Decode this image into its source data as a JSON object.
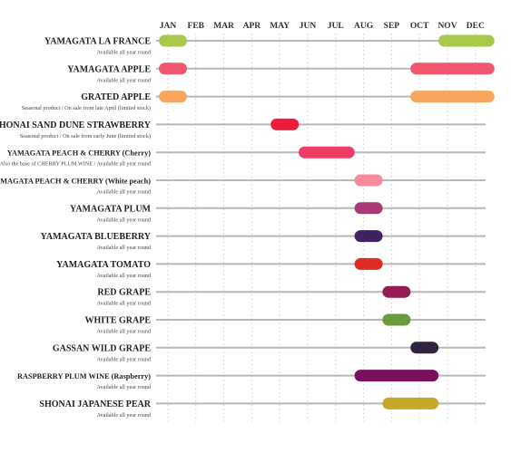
{
  "chart_data": {
    "type": "gantt",
    "title": "",
    "months": [
      "JAN",
      "FEB",
      "MAR",
      "APR",
      "MAY",
      "JUN",
      "JUL",
      "AUG",
      "SEP",
      "OCT",
      "NOV",
      "DEC"
    ],
    "grid": "dotted vertical at month boundaries",
    "products": [
      {
        "name": "YAMAGATA LA FRANCE",
        "note": "Available all year round",
        "color": "#a8c84a",
        "seasons": [
          {
            "start": "JAN",
            "end": "JAN"
          },
          {
            "start": "NOV",
            "end": "DEC"
          }
        ]
      },
      {
        "name": "YAMAGATA APPLE",
        "note": "Available all year round",
        "color": "#f2566f",
        "seasons": [
          {
            "start": "JAN",
            "end": "JAN"
          },
          {
            "start": "OCT",
            "end": "DEC"
          }
        ]
      },
      {
        "name": "GRATED APPLE",
        "note": "Seasonal product / On sale from late April (limited stock)",
        "color": "#f8a55e",
        "seasons": [
          {
            "start": "JAN",
            "end": "JAN"
          },
          {
            "start": "OCT",
            "end": "DEC"
          }
        ]
      },
      {
        "name": "SHONAI SAND DUNE STRAWBERRY",
        "note": "Seasonal product / On sale from early June (limited stock)",
        "color": "#ee1c3c",
        "seasons": [
          {
            "start": "MAY",
            "end": "MAY"
          }
        ]
      },
      {
        "name": "YAMAGATA PEACH & CHERRY (Cherry)",
        "note": "Also the base of CHERRY PLUM WINE / Available all year round",
        "color": "#ee3c66",
        "seasons": [
          {
            "start": "JUN",
            "end": "JUL"
          }
        ]
      },
      {
        "name": "YAMAGATA PEACH & CHERRY (White peach)",
        "note": "Available all year round",
        "color": "#f78a9c",
        "seasons": [
          {
            "start": "AUG",
            "end": "AUG"
          }
        ]
      },
      {
        "name": "YAMAGATA PLUM",
        "note": "Available all year round",
        "color": "#a83a74",
        "seasons": [
          {
            "start": "AUG",
            "end": "AUG"
          }
        ]
      },
      {
        "name": "YAMAGATA BLUEBERRY",
        "note": "Available all year round",
        "color": "#3f2260",
        "seasons": [
          {
            "start": "AUG",
            "end": "AUG"
          }
        ]
      },
      {
        "name": "YAMAGATA TOMATO",
        "note": "Available all year round",
        "color": "#e02a24",
        "seasons": [
          {
            "start": "AUG",
            "end": "AUG"
          }
        ]
      },
      {
        "name": "RED GRAPE",
        "note": "Available all year round",
        "color": "#961b55",
        "seasons": [
          {
            "start": "SEP",
            "end": "SEP"
          }
        ]
      },
      {
        "name": "WHITE GRAPE",
        "note": "Available all year round",
        "color": "#6a9c3e",
        "seasons": [
          {
            "start": "SEP",
            "end": "SEP"
          }
        ]
      },
      {
        "name": "GASSAN WILD GRAPE",
        "note": "Available all year round",
        "color": "#302440",
        "seasons": [
          {
            "start": "OCT",
            "end": "OCT"
          }
        ]
      },
      {
        "name": "RASPBERRY PLUM WINE (Raspberry)",
        "note": "Available all year round",
        "color": "#7a0f5e",
        "seasons": [
          {
            "start": "AUG",
            "end": "OCT"
          }
        ]
      },
      {
        "name": "SHONAI JAPANESE PEAR",
        "note": "Available all year round",
        "color": "#c6a829",
        "seasons": [
          {
            "start": "SEP",
            "end": "OCT"
          }
        ]
      }
    ]
  }
}
